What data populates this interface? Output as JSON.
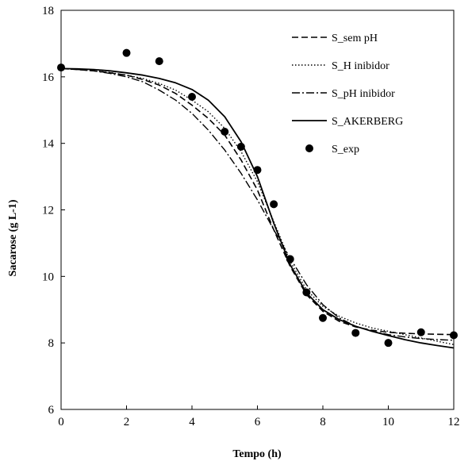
{
  "chart_data": {
    "type": "line",
    "title": "",
    "xlabel": "Tempo (h)",
    "ylabel": "Sacarose  (g L-1)",
    "xlim": [
      0,
      12
    ],
    "ylim": [
      6,
      18
    ],
    "xticks": [
      0,
      2,
      4,
      6,
      8,
      10,
      12
    ],
    "yticks": [
      6,
      8,
      10,
      12,
      14,
      16,
      18
    ],
    "grid": false,
    "legend_position": "top-right",
    "series": [
      {
        "name": "S_sem pH",
        "style": "dashed",
        "color": "#000000",
        "x": [
          0,
          0.5,
          1,
          1.5,
          2,
          2.5,
          3,
          3.5,
          4,
          4.5,
          5,
          5.5,
          6,
          6.5,
          7,
          7.5,
          8,
          8.5,
          9,
          9.5,
          10,
          10.5,
          11,
          11.5,
          12
        ],
        "y": [
          16.25,
          16.22,
          16.18,
          16.12,
          16.05,
          15.92,
          15.75,
          15.5,
          15.15,
          14.75,
          14.25,
          13.5,
          12.6,
          11.4,
          10.3,
          9.45,
          8.95,
          8.65,
          8.48,
          8.38,
          8.32,
          8.29,
          8.27,
          8.26,
          8.25
        ]
      },
      {
        "name": "S_H inibidor",
        "style": "dotted",
        "color": "#000000",
        "x": [
          0,
          0.5,
          1,
          1.5,
          2,
          2.5,
          3,
          3.5,
          4,
          4.5,
          5,
          5.5,
          6,
          6.5,
          7,
          7.5,
          8,
          8.5,
          9,
          9.5,
          10,
          10.5,
          11,
          11.5,
          12
        ],
        "y": [
          16.25,
          16.22,
          16.18,
          16.13,
          16.05,
          15.95,
          15.8,
          15.6,
          15.3,
          14.95,
          14.45,
          13.75,
          12.85,
          11.65,
          10.45,
          9.6,
          9.1,
          8.8,
          8.6,
          8.45,
          8.35,
          8.25,
          8.15,
          8.05,
          7.95
        ]
      },
      {
        "name": "S_pH inibidor",
        "style": "dashdot",
        "color": "#000000",
        "x": [
          0,
          0.5,
          1,
          1.5,
          2,
          2.5,
          3,
          3.5,
          4,
          4.5,
          5,
          5.5,
          6,
          6.5,
          7,
          7.5,
          8,
          8.5,
          9,
          9.5,
          10,
          10.5,
          11,
          11.5,
          12
        ],
        "y": [
          16.25,
          16.22,
          16.18,
          16.1,
          16.0,
          15.85,
          15.6,
          15.3,
          14.9,
          14.4,
          13.8,
          13.1,
          12.3,
          11.4,
          10.55,
          9.75,
          9.15,
          8.75,
          8.5,
          8.35,
          8.25,
          8.18,
          8.13,
          8.1,
          8.08
        ]
      },
      {
        "name": "S_AKERBERG",
        "style": "solid",
        "color": "#000000",
        "x": [
          0,
          0.5,
          1,
          1.5,
          2,
          2.5,
          3,
          3.5,
          4,
          4.5,
          5,
          5.5,
          6,
          6.5,
          7,
          7.5,
          8,
          8.5,
          9,
          9.5,
          10,
          10.5,
          11,
          11.5,
          12
        ],
        "y": [
          16.25,
          16.24,
          16.22,
          16.18,
          16.12,
          16.05,
          15.95,
          15.82,
          15.62,
          15.3,
          14.8,
          14.05,
          13.0,
          11.6,
          10.35,
          9.5,
          9.0,
          8.7,
          8.5,
          8.35,
          8.22,
          8.1,
          8.0,
          7.92,
          7.85
        ]
      },
      {
        "name": "S_exp",
        "style": "markers",
        "color": "#000000",
        "x": [
          0,
          2,
          3,
          4,
          5,
          5.5,
          6,
          6.5,
          7,
          7.5,
          8,
          9,
          10,
          11,
          12
        ],
        "y": [
          16.28,
          16.72,
          16.47,
          15.4,
          14.35,
          13.9,
          13.2,
          12.17,
          10.52,
          9.52,
          8.75,
          8.3,
          8.0,
          8.32,
          8.23
        ]
      }
    ]
  }
}
